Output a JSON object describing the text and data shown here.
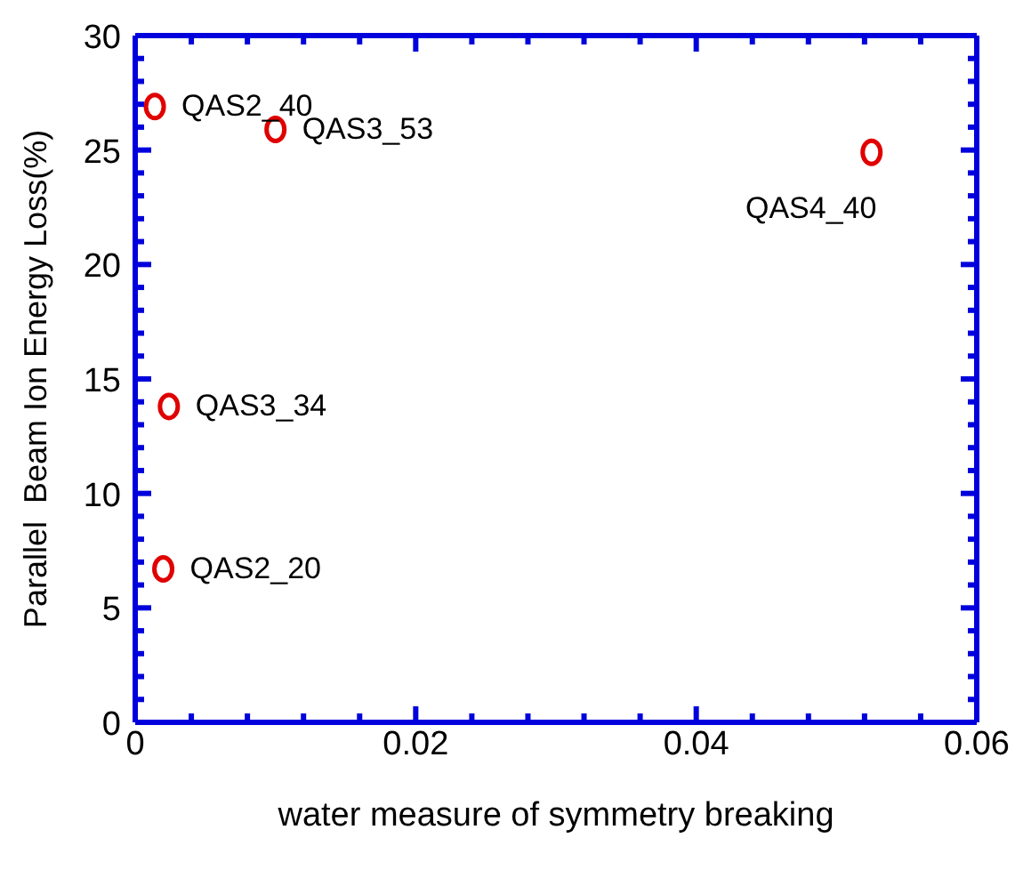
{
  "chart_data": {
    "type": "scatter",
    "xlabel": "water measure of symmetry breaking",
    "ylabel": "Parallel  Beam Ion Energy Loss(%)",
    "x": [
      0.0014,
      0.01,
      0.0525,
      0.0024,
      0.002
    ],
    "values": [
      26.9,
      25.9,
      24.9,
      13.8,
      6.7
    ],
    "color": "#e00000",
    "marker": "circle",
    "legend": false,
    "xlim": [
      0,
      0.06
    ],
    "ylim": [
      0,
      30
    ],
    "xticks": [
      0,
      {
        "value": 0.004,
        "label": null
      },
      {
        "value": 0.008,
        "label": null
      },
      {
        "value": 0.012,
        "label": null
      },
      {
        "value": 0.016,
        "label": null
      },
      0.02,
      {
        "value": 0.024,
        "label": null
      },
      {
        "value": 0.028,
        "label": null
      },
      {
        "value": 0.032,
        "label": null
      },
      {
        "value": 0.036,
        "label": null
      },
      0.04,
      {
        "value": 0.044,
        "label": null
      },
      {
        "value": 0.048,
        "label": null
      },
      {
        "value": 0.052,
        "label": null
      },
      {
        "value": 0.056,
        "label": null
      },
      0.06
    ],
    "yticks": [
      0,
      {
        "value": 1,
        "label": null
      },
      {
        "value": 2,
        "label": null
      },
      {
        "value": 3,
        "label": null
      },
      {
        "value": 4,
        "label": null
      },
      5,
      {
        "value": 6,
        "label": null
      },
      {
        "value": 7,
        "label": null
      },
      {
        "value": 8,
        "label": null
      },
      {
        "value": 9,
        "label": null
      },
      10,
      {
        "value": 11,
        "label": null
      },
      {
        "value": 12,
        "label": null
      },
      {
        "value": 13,
        "label": null
      },
      {
        "value": 14,
        "label": null
      },
      15,
      {
        "value": 16,
        "label": null
      },
      {
        "value": 17,
        "label": null
      },
      {
        "value": 18,
        "label": null
      },
      {
        "value": 19,
        "label": null
      },
      20,
      {
        "value": 21,
        "label": null
      },
      {
        "value": 22,
        "label": null
      },
      {
        "value": 23,
        "label": null
      },
      {
        "value": 24,
        "label": null
      },
      25,
      {
        "value": 26,
        "label": null
      },
      {
        "value": 27,
        "label": null
      },
      {
        "value": 28,
        "label": null
      },
      {
        "value": 29,
        "label": null
      },
      30
    ],
    "annotations": [
      {
        "text": "QAS2_40",
        "x": 0.0014,
        "y": 26.9
      },
      {
        "text": "QAS3_53",
        "x": 0.01,
        "y": 25.9
      },
      {
        "text": "QAS4_40",
        "x": 0.0525,
        "y": 24.9
      },
      {
        "text": "QAS3_34",
        "x": 0.0024,
        "y": 13.8
      },
      {
        "text": "QAS2_20",
        "x": 0.002,
        "y": 6.7
      }
    ]
  }
}
